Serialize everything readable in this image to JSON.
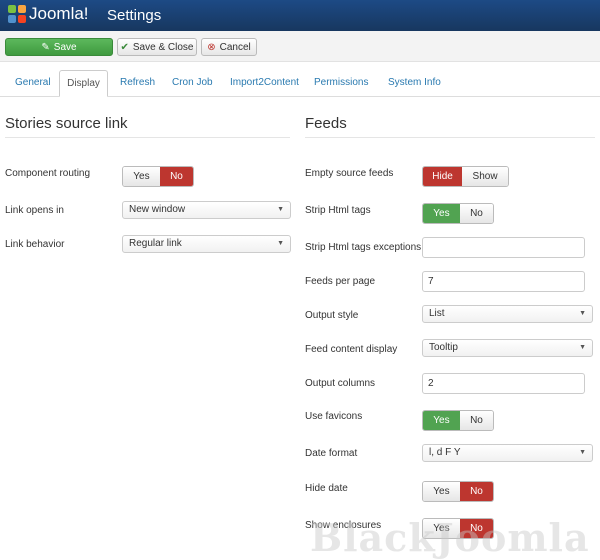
{
  "header": {
    "logo_text": "Joomla!",
    "title": "Settings"
  },
  "toolbar": {
    "save": "Save",
    "save_close": "Save & Close",
    "cancel": "Cancel"
  },
  "tabs": [
    "General",
    "Display",
    "Refresh",
    "Cron Job",
    "Import2Content",
    "Permissions",
    "System Info"
  ],
  "active_tab": "Display",
  "left": {
    "heading": "Stories source link",
    "component_routing": {
      "label": "Component routing",
      "yes": "Yes",
      "no": "No",
      "value": "No"
    },
    "link_opens_in": {
      "label": "Link opens in",
      "value": "New window"
    },
    "link_behavior": {
      "label": "Link behavior",
      "value": "Regular link"
    }
  },
  "right": {
    "heading": "Feeds",
    "empty_source_feeds": {
      "label": "Empty source feeds",
      "hide": "Hide",
      "show": "Show",
      "value": "Hide"
    },
    "strip_html": {
      "label": "Strip Html tags",
      "yes": "Yes",
      "no": "No",
      "value": "Yes"
    },
    "strip_html_exceptions": {
      "label": "Strip Html tags exceptions",
      "value": ""
    },
    "feeds_per_page": {
      "label": "Feeds per page",
      "value": "7"
    },
    "output_style": {
      "label": "Output style",
      "value": "List"
    },
    "feed_content_display": {
      "label": "Feed content display",
      "value": "Tooltip"
    },
    "output_columns": {
      "label": "Output columns",
      "value": "2"
    },
    "use_favicons": {
      "label": "Use favicons",
      "yes": "Yes",
      "no": "No",
      "value": "Yes"
    },
    "date_format": {
      "label": "Date format",
      "value": "l, d F Y"
    },
    "hide_date": {
      "label": "Hide date",
      "yes": "Yes",
      "no": "No",
      "value": "No"
    },
    "show_enclosures": {
      "label": "Show enclosures",
      "yes": "Yes",
      "no": "No",
      "value": "No"
    }
  },
  "watermark": "BlackJoomla",
  "colors": {
    "header": "#1d4a85",
    "save": "#5cb85c",
    "active_red": "#bd362f",
    "active_green": "#51a351",
    "link": "#2a7ab0"
  }
}
